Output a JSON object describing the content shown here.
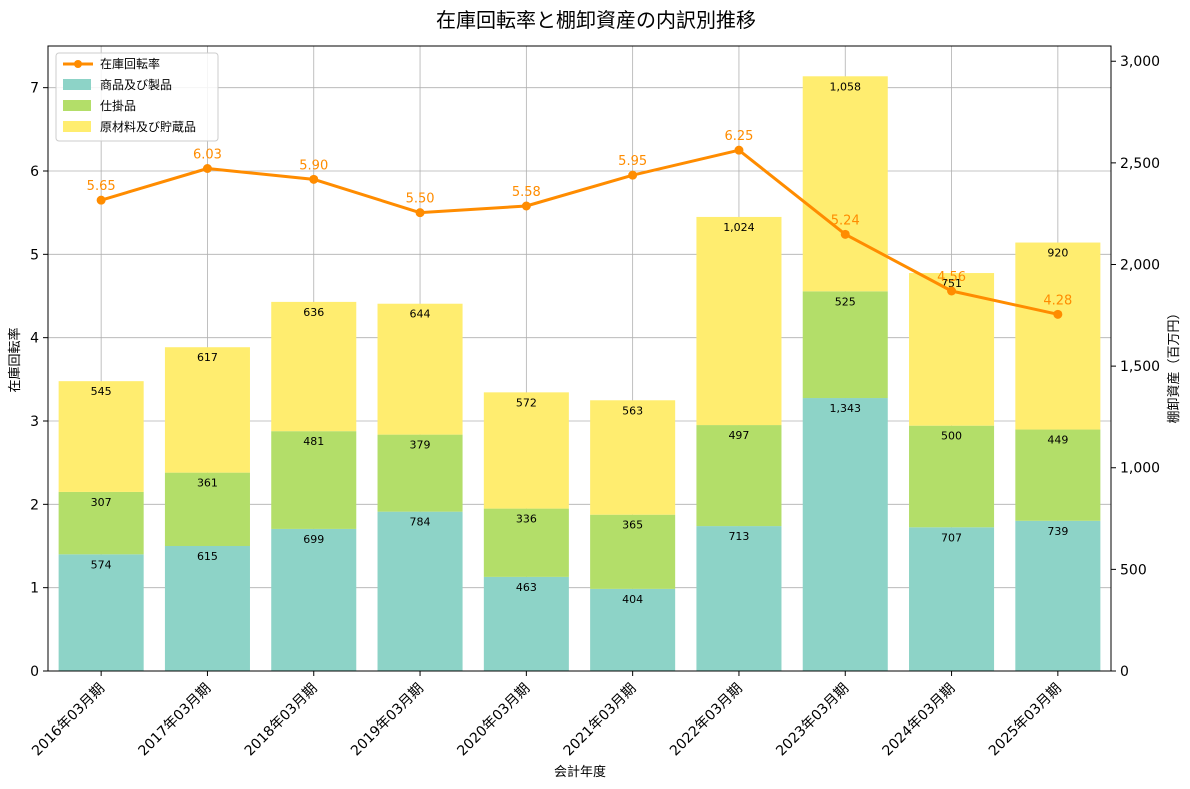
{
  "chart_data": {
    "type": "bar",
    "title": "在庫回転率と棚卸資産の内訳別推移",
    "xlabel": "会計年度",
    "ylabel_left": "在庫回転率",
    "ylabel_right": "棚卸資産（百万円）",
    "categories": [
      "2016年03月期",
      "2017年03月期",
      "2018年03月期",
      "2019年03月期",
      "2020年03月期",
      "2021年03月期",
      "2022年03月期",
      "2023年03月期",
      "2024年03月期",
      "2025年03月期"
    ],
    "bar_series": [
      {
        "name": "商品及び製品",
        "color": "#8dd3c7",
        "values": [
          574,
          615,
          699,
          784,
          463,
          404,
          713,
          1343,
          707,
          739
        ],
        "labels": [
          "574",
          "615",
          "699",
          "784",
          "463",
          "404",
          "713",
          "1,343",
          "707",
          "739"
        ]
      },
      {
        "name": "仕掛品",
        "color": "#b3de69",
        "values": [
          307,
          361,
          481,
          379,
          336,
          365,
          497,
          525,
          500,
          449
        ],
        "labels": [
          "307",
          "361",
          "481",
          "379",
          "336",
          "365",
          "497",
          "525",
          "500",
          "449"
        ]
      },
      {
        "name": "原材料及び貯蔵品",
        "color": "#ffed6f",
        "values": [
          545,
          617,
          636,
          644,
          572,
          563,
          1024,
          1058,
          751,
          920
        ],
        "labels": [
          "545",
          "617",
          "636",
          "644",
          "572",
          "563",
          "1,024",
          "1,058",
          "751",
          "920"
        ]
      }
    ],
    "line_series": {
      "name": "在庫回転率",
      "color": "#ff8c00",
      "values": [
        5.65,
        6.03,
        5.9,
        5.5,
        5.58,
        5.95,
        6.25,
        5.24,
        4.56,
        4.28
      ],
      "labels": [
        "5.65",
        "6.03",
        "5.90",
        "5.50",
        "5.58",
        "5.95",
        "6.25",
        "5.24",
        "4.56",
        "4.28"
      ]
    },
    "left_axis": {
      "min": 0,
      "max": 7.5,
      "ticks": [
        0,
        1,
        2,
        3,
        4,
        5,
        6,
        7
      ],
      "tick_labels": [
        "0",
        "1",
        "2",
        "3",
        "4",
        "5",
        "6",
        "7"
      ]
    },
    "right_axis": {
      "min": 0,
      "max": 3075,
      "ticks": [
        0,
        500,
        1000,
        1500,
        2000,
        2500,
        3000
      ],
      "tick_labels": [
        "0",
        "500",
        "1,000",
        "1,500",
        "2,000",
        "2,500",
        "3,000"
      ]
    },
    "grid": true,
    "legend_position": "top-left"
  }
}
